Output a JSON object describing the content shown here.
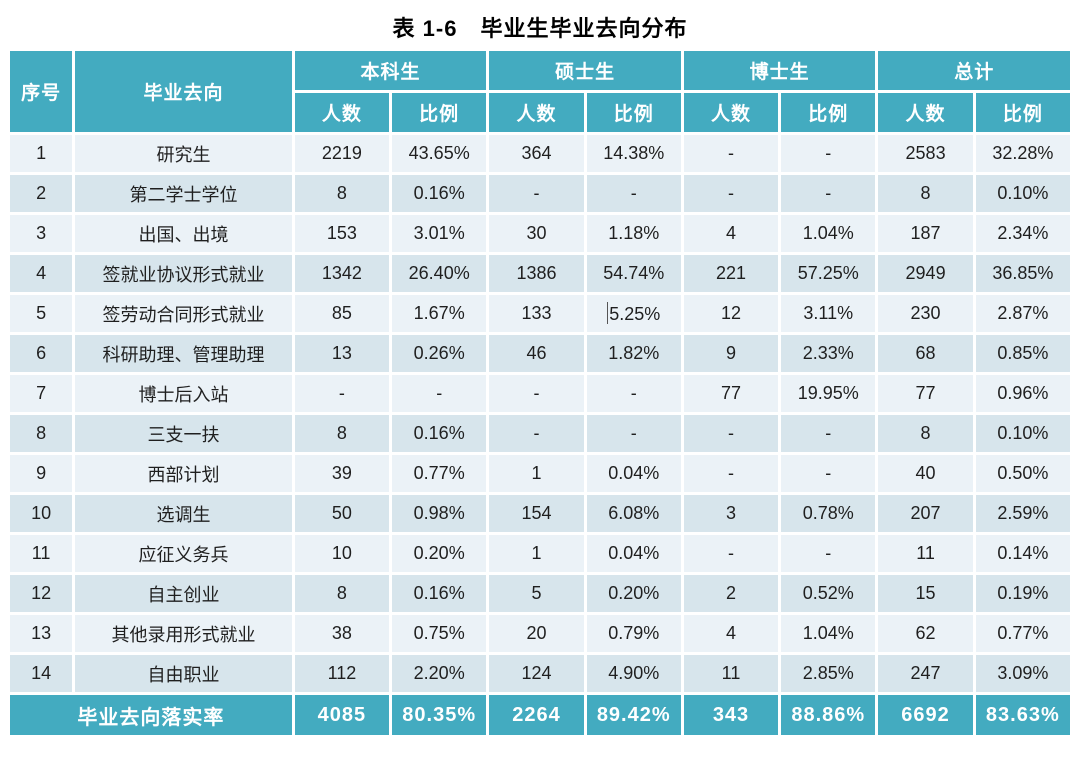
{
  "title": "表 1-6　毕业生毕业去向分布",
  "colors": {
    "header_bg": "#43abc0",
    "footer_bg": "#43abc0",
    "row_light": "#ebf2f7",
    "row_dark": "#d7e5ec",
    "text_dark": "#1f1f1f",
    "text_white": "#ffffff"
  },
  "table": {
    "corner_headers": [
      "序号",
      "毕业去向"
    ],
    "group_headers": [
      "本科生",
      "硕士生",
      "博士生",
      "总计"
    ],
    "sub_headers": [
      "人数",
      "比例"
    ],
    "rows": [
      {
        "no": "1",
        "category": "研究生",
        "values": [
          "2219",
          "43.65%",
          "364",
          "14.38%",
          "-",
          "-",
          "2583",
          "32.28%"
        ]
      },
      {
        "no": "2",
        "category": "第二学士学位",
        "values": [
          "8",
          "0.16%",
          "-",
          "-",
          "-",
          "-",
          "8",
          "0.10%"
        ]
      },
      {
        "no": "3",
        "category": "出国、出境",
        "values": [
          "153",
          "3.01%",
          "30",
          "1.18%",
          "4",
          "1.04%",
          "187",
          "2.34%"
        ]
      },
      {
        "no": "4",
        "category": "签就业协议形式就业",
        "values": [
          "1342",
          "26.40%",
          "1386",
          "54.74%",
          "221",
          "57.25%",
          "2949",
          "36.85%"
        ]
      },
      {
        "no": "5",
        "category": "签劳动合同形式就业",
        "values": [
          "85",
          "1.67%",
          "133",
          "5.25%",
          "12",
          "3.11%",
          "230",
          "2.87%"
        ],
        "cursor_before": 3
      },
      {
        "no": "6",
        "category": "科研助理、管理助理",
        "values": [
          "13",
          "0.26%",
          "46",
          "1.82%",
          "9",
          "2.33%",
          "68",
          "0.85%"
        ]
      },
      {
        "no": "7",
        "category": "博士后入站",
        "values": [
          "-",
          "-",
          "-",
          "-",
          "77",
          "19.95%",
          "77",
          "0.96%"
        ]
      },
      {
        "no": "8",
        "category": "三支一扶",
        "values": [
          "8",
          "0.16%",
          "-",
          "-",
          "-",
          "-",
          "8",
          "0.10%"
        ]
      },
      {
        "no": "9",
        "category": "西部计划",
        "values": [
          "39",
          "0.77%",
          "1",
          "0.04%",
          "-",
          "-",
          "40",
          "0.50%"
        ]
      },
      {
        "no": "10",
        "category": "选调生",
        "values": [
          "50",
          "0.98%",
          "154",
          "6.08%",
          "3",
          "0.78%",
          "207",
          "2.59%"
        ]
      },
      {
        "no": "11",
        "category": "应征义务兵",
        "values": [
          "10",
          "0.20%",
          "1",
          "0.04%",
          "-",
          "-",
          "11",
          "0.14%"
        ]
      },
      {
        "no": "12",
        "category": "自主创业",
        "values": [
          "8",
          "0.16%",
          "5",
          "0.20%",
          "2",
          "0.52%",
          "15",
          "0.19%"
        ]
      },
      {
        "no": "13",
        "category": "其他录用形式就业",
        "values": [
          "38",
          "0.75%",
          "20",
          "0.79%",
          "4",
          "1.04%",
          "62",
          "0.77%"
        ]
      },
      {
        "no": "14",
        "category": "自由职业",
        "values": [
          "112",
          "2.20%",
          "124",
          "4.90%",
          "11",
          "2.85%",
          "247",
          "3.09%"
        ]
      }
    ],
    "footer": {
      "label": "毕业去向落实率",
      "values": [
        "4085",
        "80.35%",
        "2264",
        "89.42%",
        "343",
        "88.86%",
        "6692",
        "83.63%"
      ]
    }
  }
}
